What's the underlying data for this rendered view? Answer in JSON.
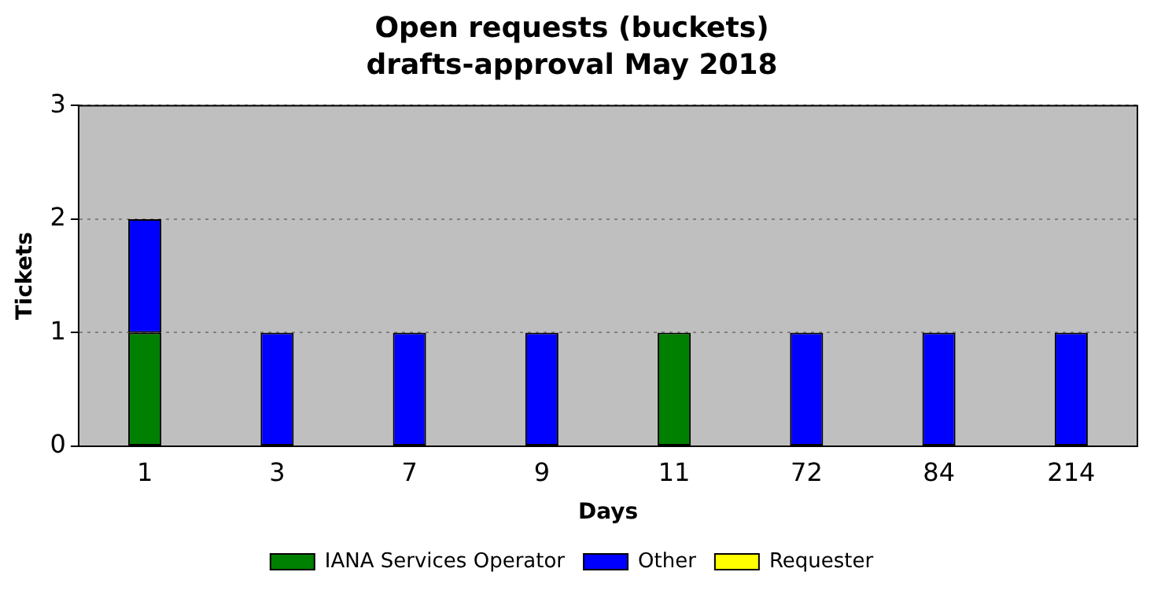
{
  "chart_data": {
    "type": "bar",
    "title": "Open requests (buckets)",
    "subtitle": "drafts-approval May 2018",
    "xlabel": "Days",
    "ylabel": "Tickets",
    "categories": [
      "1",
      "3",
      "7",
      "9",
      "11",
      "72",
      "84",
      "214"
    ],
    "series": [
      {
        "name": "IANA Services Operator",
        "color": "#008000",
        "values": [
          1,
          0,
          0,
          0,
          1,
          0,
          0,
          0
        ]
      },
      {
        "name": "Other",
        "color": "#0000ff",
        "values": [
          1,
          1,
          1,
          1,
          0,
          1,
          1,
          1
        ]
      },
      {
        "name": "Requester",
        "color": "#ffff00",
        "values": [
          0,
          0,
          0,
          0,
          0,
          0,
          0,
          0
        ]
      }
    ],
    "stacked": true,
    "ylim": [
      0,
      3
    ],
    "yticks": [
      0,
      1,
      2,
      3
    ],
    "grid": "y",
    "legend": "bottom"
  }
}
